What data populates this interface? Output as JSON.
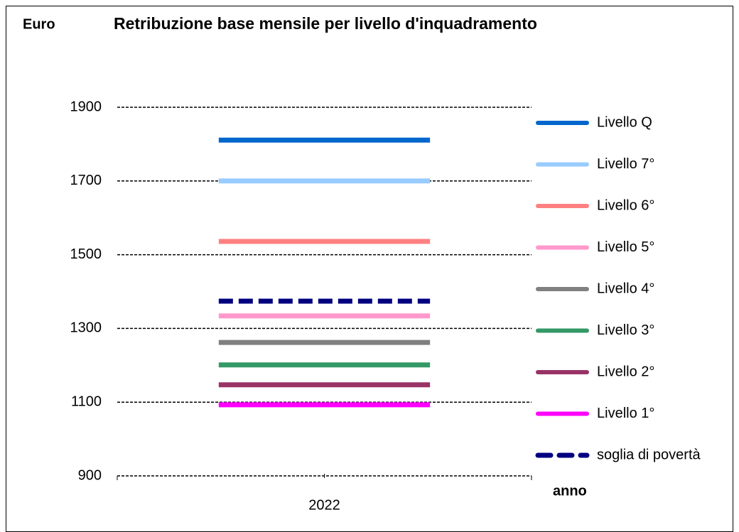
{
  "chart_data": {
    "type": "line",
    "title": "Retribuzione base mensile per livello d'inquadramento",
    "y_label": "Euro",
    "x_label": "anno",
    "categories": [
      "2022"
    ],
    "ylim": [
      900,
      1900
    ],
    "yticks": [
      900,
      1100,
      1300,
      1500,
      1700,
      1900
    ],
    "grid": true,
    "legend": "right",
    "series": [
      {
        "name": "Livello Q",
        "color": "#0066cc",
        "values": [
          1811
        ]
      },
      {
        "name": "Livello 7°",
        "color": "#99ccff",
        "values": [
          1700
        ]
      },
      {
        "name": "Livello 6°",
        "color": "#ff8080",
        "values": [
          1536
        ]
      },
      {
        "name": "Livello 5°",
        "color": "#ff99cc",
        "values": [
          1334
        ]
      },
      {
        "name": "Livello 4°",
        "color": "#808080",
        "values": [
          1262
        ]
      },
      {
        "name": "Livello 3°",
        "color": "#339966",
        "values": [
          1201
        ]
      },
      {
        "name": "Livello 2°",
        "color": "#993366",
        "values": [
          1147
        ]
      },
      {
        "name": "Livello 1°",
        "color": "#ff00ff",
        "values": [
          1093
        ]
      },
      {
        "name": "soglia di povertà",
        "color": "#000080",
        "style": "dashed",
        "values": [
          1374
        ]
      }
    ]
  }
}
